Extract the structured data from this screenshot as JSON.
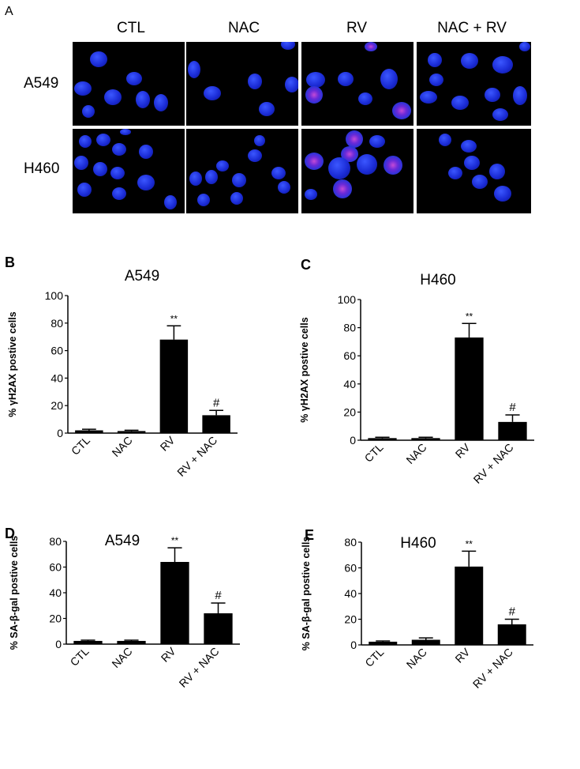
{
  "panel_a": {
    "letter": "A",
    "columns": [
      "CTL",
      "NAC",
      "RV",
      "NAC + RV"
    ],
    "rows": [
      "A549",
      "H460"
    ]
  },
  "chart_data": [
    {
      "panel": "B",
      "type": "bar",
      "title": "A549",
      "ylabel": "% γH2AX postive cells",
      "categories": [
        "CTL",
        "NAC",
        "RV",
        "RV + NAC"
      ],
      "values": [
        2,
        1.5,
        68,
        13
      ],
      "errors": [
        0.8,
        0.6,
        10,
        3.5
      ],
      "significance": [
        "",
        "",
        "**",
        "#"
      ],
      "ylim": [
        0,
        100
      ],
      "yticks": [
        "0",
        "20",
        "40",
        "60",
        "80",
        "100"
      ],
      "color": "#000000"
    },
    {
      "panel": "C",
      "type": "bar",
      "title": "H460",
      "ylabel": "% γH2AX postive cells",
      "categories": [
        "CTL",
        "NAC",
        "RV",
        "RV + NAC"
      ],
      "values": [
        1.5,
        1.5,
        73,
        13
      ],
      "errors": [
        0.6,
        0.6,
        10,
        5
      ],
      "significance": [
        "",
        "",
        "**",
        "#"
      ],
      "ylim": [
        0,
        100
      ],
      "yticks": [
        "0",
        "20",
        "40",
        "60",
        "80",
        "100"
      ],
      "color": "#000000"
    },
    {
      "panel": "D",
      "type": "bar",
      "title": "A549",
      "ylabel": "% SA-β-gal postive cells",
      "categories": [
        "CTL",
        "NAC",
        "RV",
        "RV + NAC"
      ],
      "values": [
        2.5,
        2.5,
        64,
        24
      ],
      "errors": [
        0.6,
        0.6,
        11,
        8
      ],
      "significance": [
        "",
        "",
        "**",
        "#"
      ],
      "ylim": [
        0,
        80
      ],
      "yticks": [
        "0",
        "20",
        "40",
        "60",
        "80"
      ],
      "color": "#000000"
    },
    {
      "panel": "E",
      "type": "bar",
      "title": "H460",
      "ylabel": "% SA-β-gal postive cells",
      "categories": [
        "CTL",
        "NAC",
        "RV",
        "RV + NAC"
      ],
      "values": [
        2.5,
        4,
        61,
        16
      ],
      "errors": [
        0.6,
        1.5,
        12,
        4
      ],
      "significance": [
        "",
        "",
        "**",
        "#"
      ],
      "ylim": [
        0,
        80
      ],
      "yticks": [
        "0",
        "20",
        "40",
        "60",
        "80"
      ],
      "color": "#000000"
    }
  ]
}
